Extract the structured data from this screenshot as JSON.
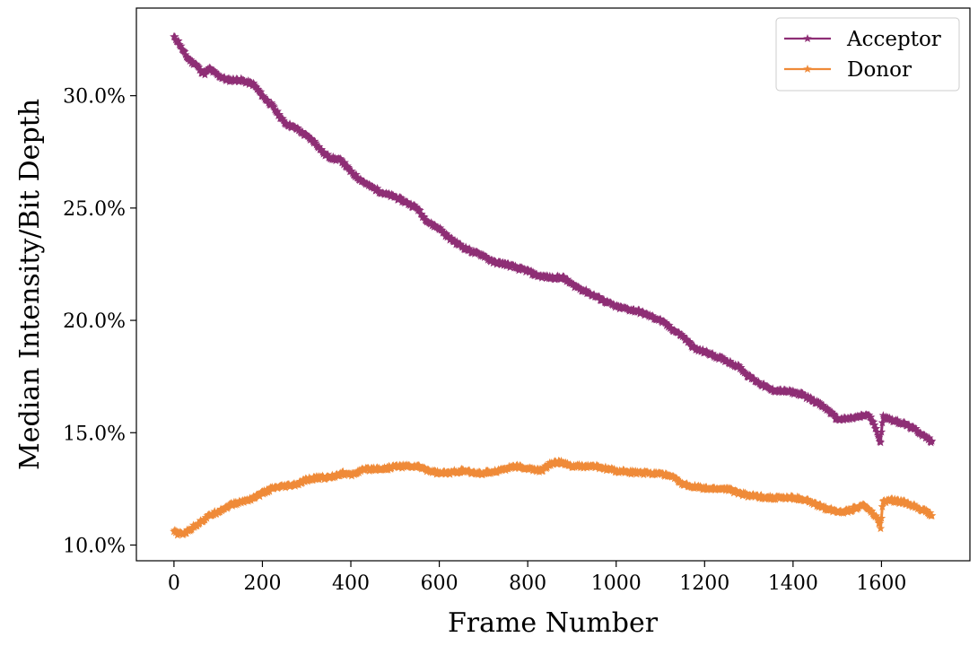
{
  "chart_data": {
    "type": "line",
    "title": "",
    "xlabel": "Frame Number",
    "ylabel": "Median Intensity/Bit Depth",
    "xlim": [
      -85,
      1800
    ],
    "ylim": [
      9.3,
      33.9
    ],
    "xticks": [
      0,
      200,
      400,
      600,
      800,
      1000,
      1200,
      1400,
      1600
    ],
    "yticks": [
      10,
      15,
      20,
      25,
      30
    ],
    "ytick_labels": [
      "10.0%",
      "15.0%",
      "20.0%",
      "25.0%",
      "30.0%"
    ],
    "grid": false,
    "legend_position": "top-right",
    "marker": "star",
    "series": [
      {
        "name": "Acceptor",
        "color": "#8e2e75",
        "x": [
          0,
          10,
          20,
          30,
          40,
          50,
          60,
          70,
          80,
          100,
          120,
          150,
          180,
          200,
          220,
          250,
          280,
          300,
          320,
          340,
          360,
          380,
          400,
          420,
          440,
          460,
          480,
          500,
          520,
          550,
          560,
          580,
          600,
          620,
          650,
          680,
          700,
          720,
          750,
          780,
          800,
          820,
          850,
          880,
          900,
          920,
          950,
          980,
          1000,
          1050,
          1100,
          1120,
          1150,
          1180,
          1200,
          1250,
          1280,
          1300,
          1350,
          1400,
          1420,
          1450,
          1480,
          1500,
          1520,
          1550,
          1570,
          1580,
          1590,
          1598,
          1603,
          1610,
          1620,
          1650,
          1680,
          1700,
          1715
        ],
        "y": [
          32.6,
          32.4,
          32.0,
          31.7,
          31.5,
          31.4,
          31.1,
          31.0,
          31.2,
          30.9,
          30.7,
          30.7,
          30.5,
          30.0,
          29.6,
          28.8,
          28.5,
          28.2,
          27.9,
          27.4,
          27.2,
          27.1,
          26.6,
          26.3,
          26.0,
          25.8,
          25.6,
          25.5,
          25.3,
          25.0,
          24.7,
          24.3,
          24.1,
          23.7,
          23.3,
          23.0,
          22.9,
          22.6,
          22.5,
          22.3,
          22.2,
          22.0,
          21.9,
          21.9,
          21.6,
          21.4,
          21.1,
          20.8,
          20.6,
          20.4,
          20.0,
          19.7,
          19.3,
          18.7,
          18.6,
          18.2,
          17.9,
          17.5,
          16.9,
          16.8,
          16.7,
          16.4,
          16.0,
          15.6,
          15.6,
          15.7,
          15.8,
          15.5,
          15.1,
          14.5,
          15.7,
          15.7,
          15.6,
          15.4,
          15.1,
          14.8,
          14.6
        ]
      },
      {
        "name": "Donor",
        "color": "#ef8a38",
        "x": [
          0,
          10,
          20,
          30,
          50,
          80,
          100,
          130,
          150,
          180,
          200,
          220,
          250,
          280,
          300,
          330,
          350,
          380,
          400,
          420,
          450,
          480,
          500,
          530,
          550,
          580,
          600,
          620,
          650,
          680,
          700,
          730,
          750,
          770,
          800,
          830,
          850,
          870,
          900,
          950,
          1000,
          1050,
          1100,
          1130,
          1150,
          1180,
          1200,
          1250,
          1280,
          1300,
          1350,
          1400,
          1430,
          1450,
          1480,
          1500,
          1520,
          1550,
          1560,
          1575,
          1590,
          1598,
          1603,
          1620,
          1650,
          1680,
          1700,
          1715
        ],
        "y": [
          10.6,
          10.5,
          10.5,
          10.6,
          10.9,
          11.3,
          11.5,
          11.8,
          11.9,
          12.1,
          12.3,
          12.5,
          12.6,
          12.7,
          12.9,
          13.0,
          13.0,
          13.2,
          13.1,
          13.3,
          13.4,
          13.4,
          13.5,
          13.5,
          13.5,
          13.3,
          13.2,
          13.2,
          13.3,
          13.2,
          13.2,
          13.3,
          13.4,
          13.5,
          13.4,
          13.3,
          13.6,
          13.7,
          13.5,
          13.5,
          13.3,
          13.2,
          13.2,
          13.0,
          12.7,
          12.6,
          12.5,
          12.5,
          12.3,
          12.2,
          12.1,
          12.1,
          12.0,
          11.8,
          11.6,
          11.5,
          11.5,
          11.7,
          11.8,
          11.5,
          11.2,
          10.8,
          11.9,
          12.0,
          11.9,
          11.7,
          11.5,
          11.3
        ]
      }
    ]
  }
}
